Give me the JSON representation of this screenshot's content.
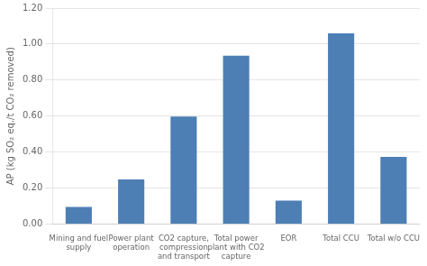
{
  "chart_data": {
    "type": "bar",
    "categories": [
      "Mining and fuel\nsupply",
      "Power plant\noperation",
      "CO2 capture,\ncompression\nand transport",
      "Total power\nplant with CO2\ncapture",
      "EOR",
      "Total CCU",
      "Total w/o CCU"
    ],
    "values": [
      0.095,
      0.248,
      0.597,
      0.935,
      0.13,
      1.06,
      0.373
    ],
    "color": "#4d7fb5",
    "ylabel": "AP (kg SO₂ eq./t CO₂ removed)",
    "ylim": [
      0,
      1.2
    ],
    "yticks": [
      {
        "value": 0,
        "label": "0.00"
      },
      {
        "value": 0.2,
        "label": "0.20"
      },
      {
        "value": 0.4,
        "label": "0.40"
      },
      {
        "value": 0.6,
        "label": "0.60"
      },
      {
        "value": 0.8,
        "label": "0.80"
      },
      {
        "value": 1.0,
        "label": "1.00"
      },
      {
        "value": 1.2,
        "label": "1.20"
      }
    ],
    "grid": true
  }
}
